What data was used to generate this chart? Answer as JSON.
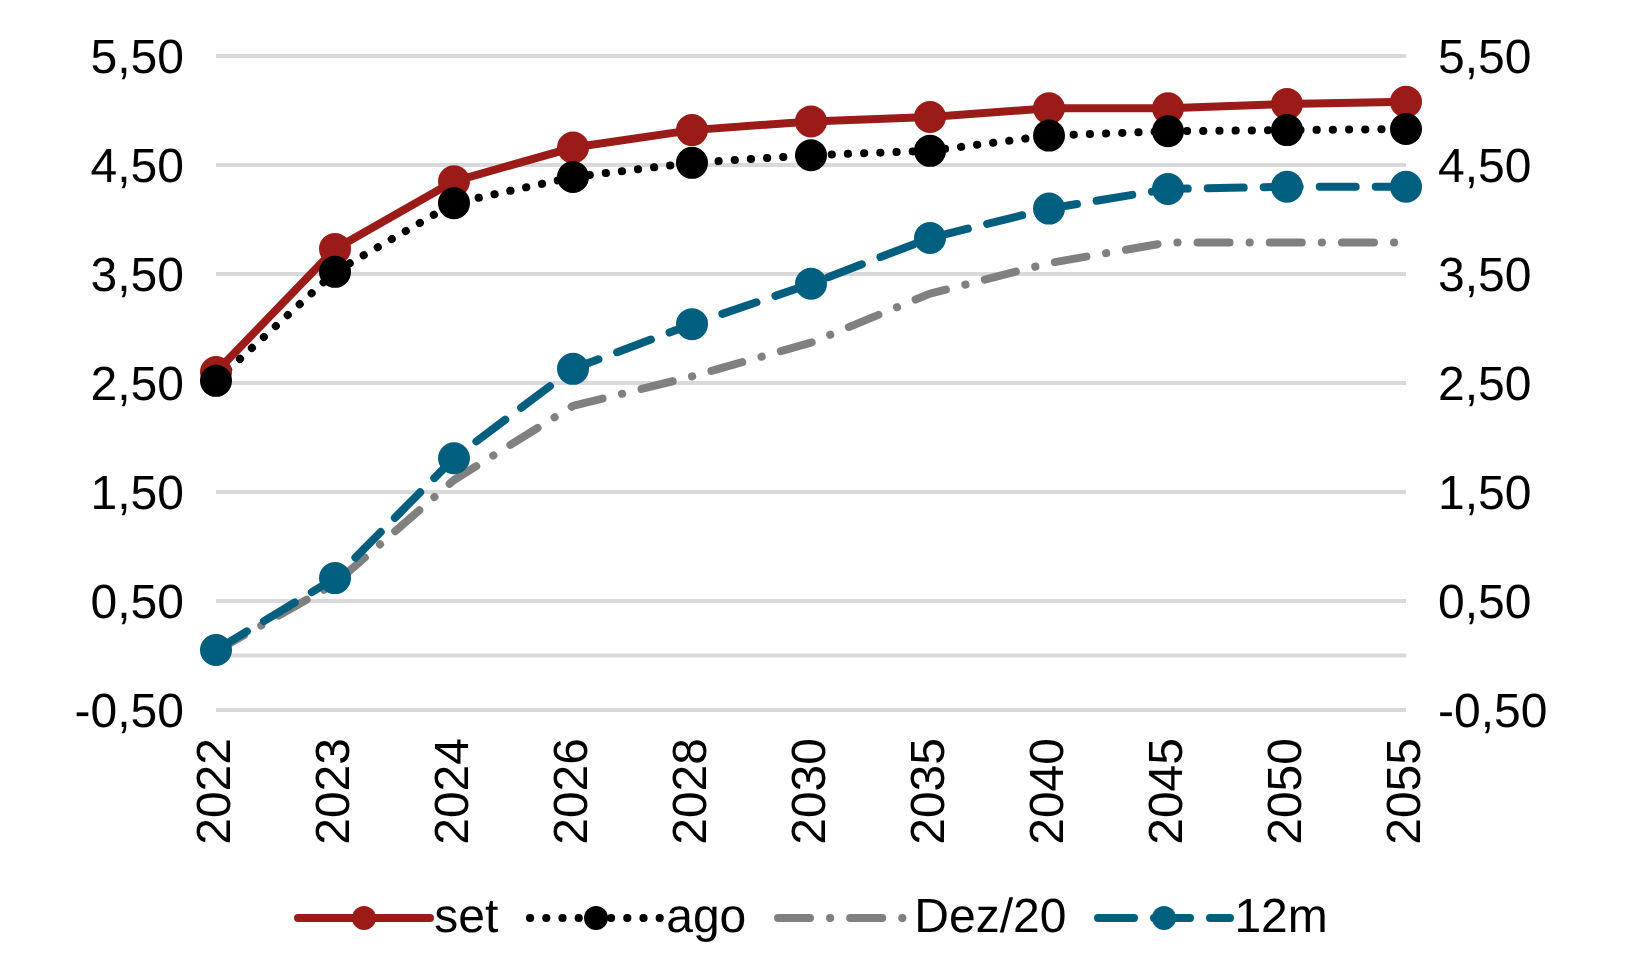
{
  "chart_data": {
    "type": "line",
    "categories": [
      "2022",
      "2023",
      "2024",
      "2026",
      "2028",
      "2030",
      "2035",
      "2040",
      "2045",
      "2050",
      "2055"
    ],
    "series": [
      {
        "name": "set",
        "color": "#9b1b18",
        "marker": "circle",
        "line_style": "solid",
        "values": [
          2.6,
          3.73,
          4.35,
          4.66,
          4.82,
          4.9,
          4.94,
          5.02,
          5.02,
          5.06,
          5.08
        ]
      },
      {
        "name": "ago",
        "color": "#000000",
        "marker": "circle",
        "line_style": "dotted",
        "values": [
          2.52,
          3.52,
          4.15,
          4.39,
          4.52,
          4.59,
          4.63,
          4.77,
          4.81,
          4.82,
          4.83
        ]
      },
      {
        "name": "Dez/20",
        "color": "#808080",
        "marker": "none",
        "line_style": "dashdot",
        "values": [
          0.04,
          0.66,
          1.61,
          2.29,
          2.56,
          2.87,
          3.32,
          3.6,
          3.79,
          3.79,
          3.79
        ]
      },
      {
        "name": "12m",
        "color": "#005f7f",
        "marker": "circle",
        "line_style": "dashed",
        "values": [
          0.05,
          0.71,
          1.81,
          2.63,
          3.04,
          3.41,
          3.83,
          4.1,
          4.28,
          4.3,
          4.3
        ]
      }
    ],
    "ylim": [
      -0.5,
      5.5
    ],
    "yticks": [
      {
        "value": -0.5,
        "label": "-0,50"
      },
      {
        "value": 0.5,
        "label": "0,50"
      },
      {
        "value": 1.5,
        "label": "1,50"
      },
      {
        "value": 2.5,
        "label": "2,50"
      },
      {
        "value": 3.5,
        "label": "3,50"
      },
      {
        "value": 4.5,
        "label": "4,50"
      },
      {
        "value": 5.5,
        "label": "5,50"
      }
    ],
    "y2lim": [
      -0.5,
      5.5
    ],
    "y2ticks": [
      {
        "value": -0.5,
        "label": "-0,50"
      },
      {
        "value": 0.5,
        "label": "0,50"
      },
      {
        "value": 1.5,
        "label": "1,50"
      },
      {
        "value": 2.5,
        "label": "2,50"
      },
      {
        "value": 3.5,
        "label": "3,50"
      },
      {
        "value": 4.5,
        "label": "4,50"
      },
      {
        "value": 5.5,
        "label": "5,50"
      }
    ],
    "ref_lines": [
      {
        "axis": "y",
        "value": 0,
        "color": "#d9d9d9"
      }
    ],
    "grid": "y",
    "legend": "bottom"
  }
}
